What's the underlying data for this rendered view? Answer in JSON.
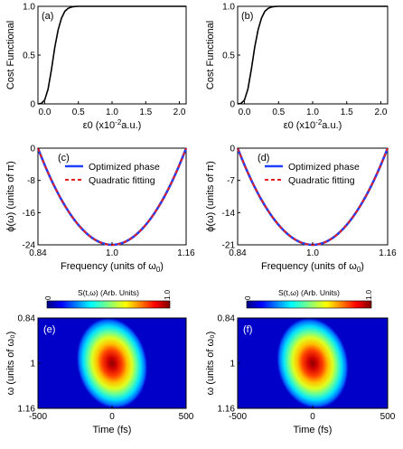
{
  "colors": {
    "blue": "#1f3fff",
    "red": "#e32020",
    "black": "#000000"
  },
  "chart_data": [
    {
      "id": "a",
      "panel_label": "(a)",
      "type": "line",
      "xlabel": "ε0 (x10",
      "xlabel_sup": "-2",
      "xlabel_end": "a.u.)",
      "ylabel": "Cost Functional",
      "xlim": [
        -0.1,
        2.1
      ],
      "ylim": [
        0,
        1.0
      ],
      "xticks": [
        "0.0",
        "0.5",
        "1.0",
        "1.5",
        "2.0"
      ],
      "xtick_values": [
        0,
        0.5,
        1.0,
        1.5,
        2.0
      ],
      "yticks": [
        "0",
        "0.5",
        "1.0"
      ],
      "ytick_values": [
        0,
        0.5,
        1.0
      ],
      "series": [
        {
          "x": [
            -0.1,
            -0.05,
            0,
            0.05,
            0.1,
            0.15,
            0.2,
            0.25,
            0.3,
            0.35,
            0.4,
            0.45,
            0.5,
            0.6,
            0.8,
            1.0,
            1.5,
            2.0,
            2.1
          ],
          "y": [
            0,
            0.005,
            0.04,
            0.15,
            0.35,
            0.58,
            0.76,
            0.88,
            0.95,
            0.98,
            0.993,
            0.998,
            1.0,
            1.0,
            1.0,
            1.0,
            1.0,
            1.0,
            1.0
          ]
        }
      ]
    },
    {
      "id": "b",
      "panel_label": "(b)",
      "type": "line",
      "xlabel": "ε0 (x10",
      "xlabel_sup": "-2",
      "xlabel_end": "a.u.)",
      "ylabel": "Cost Functional",
      "xlim": [
        -0.1,
        2.1
      ],
      "ylim": [
        0,
        1.0
      ],
      "xticks": [
        "0.0",
        "0.5",
        "1.0",
        "1.5",
        "2.0"
      ],
      "xtick_values": [
        0,
        0.5,
        1.0,
        1.5,
        2.0
      ],
      "yticks": [
        "0",
        "0.5",
        "1.0"
      ],
      "ytick_values": [
        0,
        0.5,
        1.0
      ],
      "series": [
        {
          "x": [
            -0.1,
            -0.05,
            0,
            0.05,
            0.1,
            0.15,
            0.2,
            0.25,
            0.3,
            0.35,
            0.4,
            0.45,
            0.5,
            0.6,
            0.8,
            1.0,
            1.5,
            2.0,
            2.1
          ],
          "y": [
            0,
            0.005,
            0.04,
            0.15,
            0.35,
            0.58,
            0.76,
            0.88,
            0.95,
            0.98,
            0.993,
            0.998,
            1.0,
            1.0,
            1.0,
            1.0,
            1.0,
            1.0,
            1.0
          ]
        }
      ]
    },
    {
      "id": "c",
      "panel_label": "(c)",
      "type": "line",
      "xlabel": "Frequency (units of ω",
      "xlabel_sub": "0",
      "xlabel_end": ")",
      "ylabel": "ϕ(ω) (units of π)",
      "xlim": [
        0.84,
        1.16
      ],
      "ylim": [
        -24,
        0
      ],
      "xticks": [
        "0.84",
        "1.0",
        "1.16"
      ],
      "xtick_values": [
        0.84,
        1.0,
        1.16
      ],
      "yticks": [
        "0",
        "-8",
        "-16",
        "-24"
      ],
      "ytick_values": [
        0,
        -8,
        -16,
        -24
      ],
      "series": [
        {
          "name": "Optimized phase",
          "style": "solid",
          "color": "#1f3fff",
          "curve": "quadratic",
          "vertex_x": 1.0,
          "vertex_y": -24,
          "end_y": 0
        },
        {
          "name": "Quadratic fitting",
          "style": "dashed",
          "color": "#e32020",
          "curve": "quadratic",
          "vertex_x": 1.0,
          "vertex_y": -24,
          "end_y": 0
        }
      ]
    },
    {
      "id": "d",
      "panel_label": "(d)",
      "type": "line",
      "xlabel": "Frequency (units of ω",
      "xlabel_sub": "0",
      "xlabel_end": ")",
      "ylabel": "ϕ(ω) (units of π)",
      "xlim": [
        0.84,
        1.16
      ],
      "ylim": [
        -21,
        0
      ],
      "xticks": [
        "0.84",
        "1.0",
        "1.16"
      ],
      "xtick_values": [
        0.84,
        1.0,
        1.16
      ],
      "yticks": [
        "0",
        "-7",
        "-14",
        "-21"
      ],
      "ytick_values": [
        0,
        -7,
        -14,
        -21
      ],
      "series": [
        {
          "name": "Optimized phase",
          "style": "solid",
          "color": "#1f3fff",
          "curve": "quadratic",
          "vertex_x": 1.0,
          "vertex_y": -21,
          "end_y": 0
        },
        {
          "name": "Quadratic fitting",
          "style": "dashed",
          "color": "#e32020",
          "curve": "quadratic",
          "vertex_x": 1.0,
          "vertex_y": -21,
          "end_y": 0
        }
      ]
    },
    {
      "id": "e",
      "panel_label": "(e)",
      "type": "heatmap",
      "colorbar_title": "S(t,ω) (Arb. Units)",
      "colorbar_ticks": [
        "0",
        "1.0"
      ],
      "xlabel": "Time (fs)",
      "ylabel": "ω (units of ω₀)",
      "xlim": [
        -500,
        500
      ],
      "ylim": [
        0.84,
        1.16
      ],
      "xticks": [
        "-500",
        "0",
        "500"
      ],
      "xtick_values": [
        -500,
        0,
        500
      ],
      "yticks": [
        "0.84",
        "1",
        "1.16"
      ],
      "ytick_values": [
        0.84,
        1.0,
        1.16
      ],
      "peak_t": 0,
      "peak_w": 1.0,
      "sigma_t": 80,
      "sigma_w": 0.055,
      "tilt_deg": -12
    },
    {
      "id": "f",
      "panel_label": "(f)",
      "type": "heatmap",
      "colorbar_title": "S(t,ω) (Arb. Units)",
      "colorbar_ticks": [
        "0",
        "1.0"
      ],
      "xlabel": "Time (fs)",
      "ylabel": "ω (units of ω₀)",
      "xlim": [
        -500,
        500
      ],
      "ylim": [
        0.84,
        1.16
      ],
      "xticks": [
        "-500",
        "0",
        "500"
      ],
      "xtick_values": [
        -500,
        0,
        500
      ],
      "yticks": [
        "0.84",
        "1",
        "1.16"
      ],
      "ytick_values": [
        0.84,
        1.0,
        1.16
      ],
      "peak_t": 0,
      "peak_w": 1.0,
      "sigma_t": 80,
      "sigma_w": 0.055,
      "tilt_deg": -12
    }
  ]
}
